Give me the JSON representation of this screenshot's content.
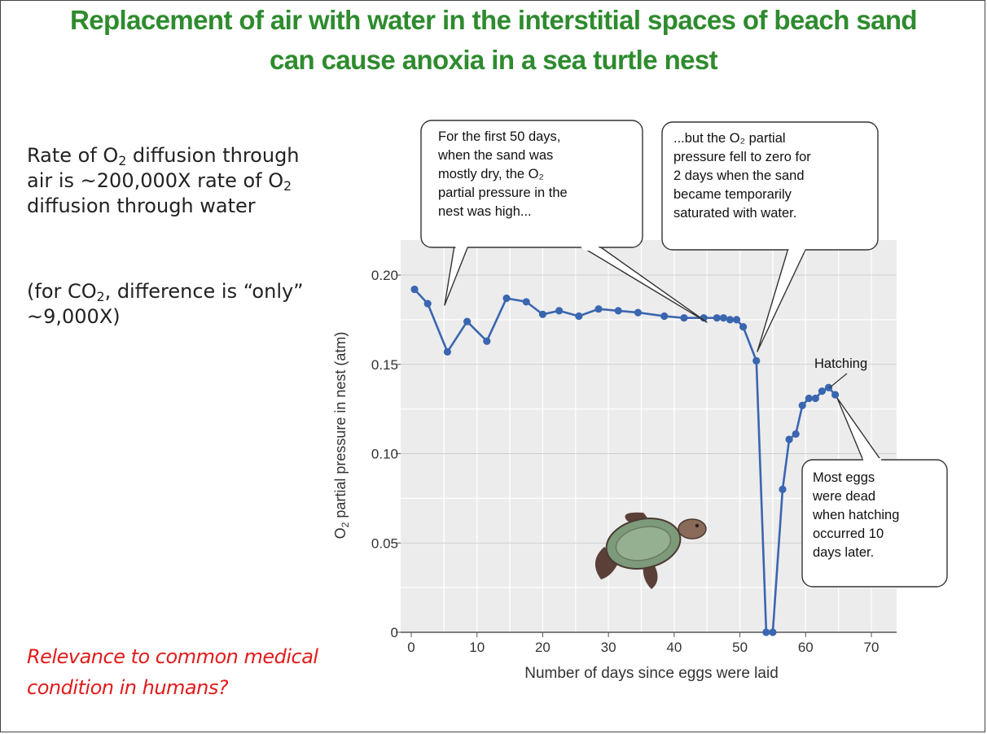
{
  "slide": {
    "title_line1": "Replacement of air with water in the interstitial spaces of beach sand",
    "title_line2": "can cause anoxia in a sea turtle nest",
    "text1": {
      "l1_a": "Rate of O",
      "l1_sub": "2",
      "l1_b": " diffusion through",
      "l2_a": "air is ~200,000X rate of O",
      "l2_sub": "2",
      "l3": "diffusion through water"
    },
    "text2": {
      "l1_a": "(for CO",
      "l1_sub": "2",
      "l1_b": ", difference is “only”",
      "l2": "~9,000X)"
    },
    "relevance_line1": "Relevance to common medical",
    "relevance_line2": "condition in humans?"
  },
  "colors": {
    "title": "#2e8b2e",
    "line": "#3a66b0",
    "relevance": "#e21b1b",
    "plot_bg": "#ececec"
  },
  "chart_data": {
    "type": "line",
    "xlabel": "Number of days since eggs were laid",
    "ylabel_prefix": "O",
    "ylabel_sub": "2",
    "ylabel_suffix": " partial pressure in nest (atm)",
    "xlim": [
      0,
      72
    ],
    "ylim": [
      0,
      0.22
    ],
    "x_ticks": [
      0,
      10,
      20,
      30,
      40,
      50,
      60,
      70
    ],
    "x_tick_labels": [
      "0",
      "10",
      "20",
      "30",
      "40",
      "50",
      "60",
      "70"
    ],
    "y_ticks": [
      0,
      0.05,
      0.1,
      0.15,
      0.2
    ],
    "y_tick_labels": [
      "0",
      "0.05",
      "0.10",
      "0.15",
      "0.20"
    ],
    "grid": true,
    "series": [
      {
        "x": [
          0.5,
          2.5,
          5.5,
          8.5,
          11.5,
          14.5,
          17.5,
          20,
          22.5,
          25.5,
          28.5,
          31.5,
          34.5,
          38.5,
          41.5,
          44.5,
          46.5,
          47.5,
          48.5,
          49.5,
          50.5,
          52.5,
          54,
          55,
          56.5,
          57.5,
          58.5,
          59.5,
          60.5,
          61.5,
          62.5,
          63.5,
          64.5
        ],
        "y": [
          0.192,
          0.184,
          0.157,
          0.174,
          0.163,
          0.187,
          0.185,
          0.178,
          0.18,
          0.177,
          0.181,
          0.18,
          0.179,
          0.177,
          0.176,
          0.176,
          0.176,
          0.176,
          0.175,
          0.175,
          0.171,
          0.152,
          0.0,
          0.0,
          0.08,
          0.108,
          0.111,
          0.127,
          0.131,
          0.131,
          0.135,
          0.137,
          0.133
        ]
      }
    ],
    "annotations": [
      {
        "lines": [
          "For the first 50 days,",
          "when the sand was",
          "mostly dry, the O₂",
          "partial pressure in the",
          "nest was high..."
        ]
      },
      {
        "lines": [
          "...but the O₂ partial",
          "pressure fell to zero for",
          "2 days when the sand",
          "became temporarily",
          "saturated with water."
        ]
      },
      {
        "lines": [
          "Most eggs",
          "were dead",
          "when hatching",
          "occurred 10",
          "days later."
        ]
      },
      {
        "lines": [
          "Hatching"
        ]
      }
    ],
    "illustration": "sea-turtle"
  }
}
